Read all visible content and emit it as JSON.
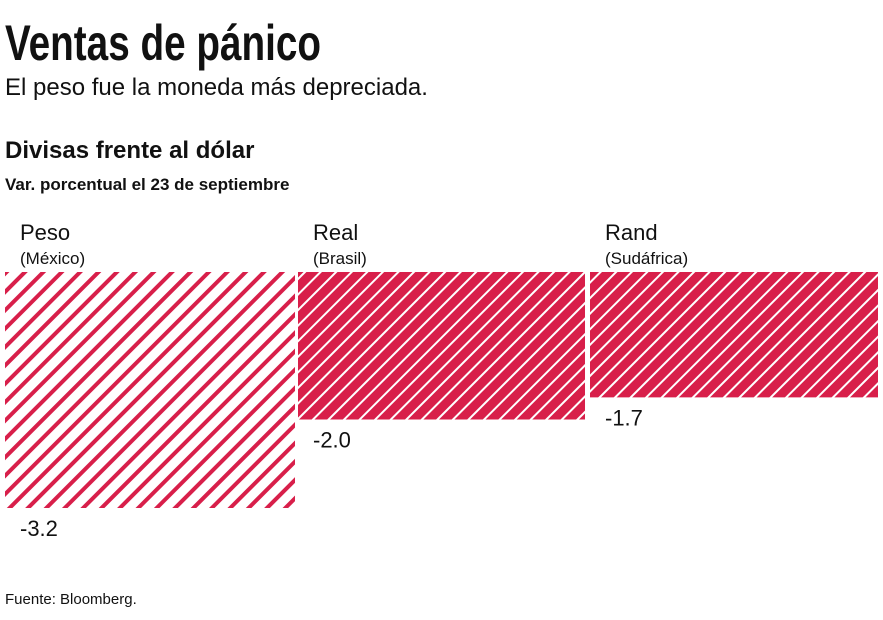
{
  "chart_data": {
    "type": "bar",
    "title": "Ventas de pánico",
    "subtitle": "El peso fue la moneda más depreciada.",
    "chart_title": "Divisas frente al dólar",
    "chart_subtitle": "Var. porcentual el 23 de septiembre",
    "categories": [
      "Peso",
      "Real",
      "Rand"
    ],
    "category_sublabels": [
      "(México)",
      "(Brasil)",
      "(Sudáfrica)"
    ],
    "values": [
      -3.2,
      -2.0,
      -1.7
    ],
    "value_labels": [
      "-3.2",
      "-2.0",
      "-1.7"
    ],
    "color": "#d81f4a",
    "source": "Fuente: Bloomberg."
  }
}
